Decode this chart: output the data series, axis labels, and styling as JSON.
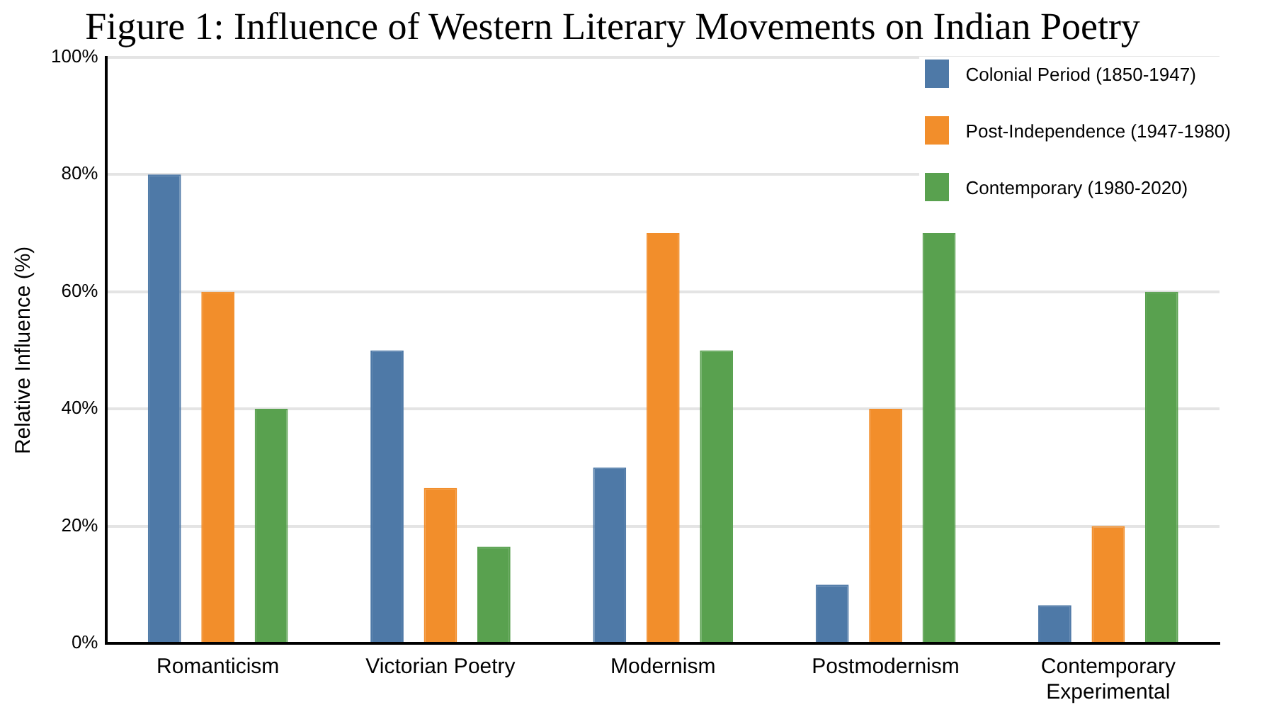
{
  "chart_data": {
    "type": "bar",
    "title": "Figure 1: Influence of Western Literary Movements on Indian Poetry",
    "ylabel": "Relative Influence (%)",
    "categories": [
      "Romanticism",
      "Victorian Poetry",
      "Modernism",
      "Postmodernism",
      "Contemporary Experimental"
    ],
    "series": [
      {
        "name": "Colonial Period (1850-1947)",
        "color": "#4e79a7",
        "values": [
          80,
          50,
          30,
          10,
          6.5
        ]
      },
      {
        "name": "Post-Independence (1947-1980)",
        "color": "#f28e2b",
        "values": [
          60,
          26.5,
          70,
          40,
          20
        ]
      },
      {
        "name": "Contemporary (1980-2020)",
        "color": "#59a14f",
        "values": [
          40,
          16.5,
          50,
          70,
          60
        ]
      }
    ],
    "ylim": [
      0,
      100
    ],
    "yticks": [
      {
        "value": 0,
        "label": "0%"
      },
      {
        "value": 20,
        "label": "20%"
      },
      {
        "value": 40,
        "label": "40%"
      },
      {
        "value": 60,
        "label": "60%"
      },
      {
        "value": 80,
        "label": "80%"
      },
      {
        "value": 100,
        "label": "100%"
      }
    ],
    "grid": "y",
    "legend": "top right"
  }
}
